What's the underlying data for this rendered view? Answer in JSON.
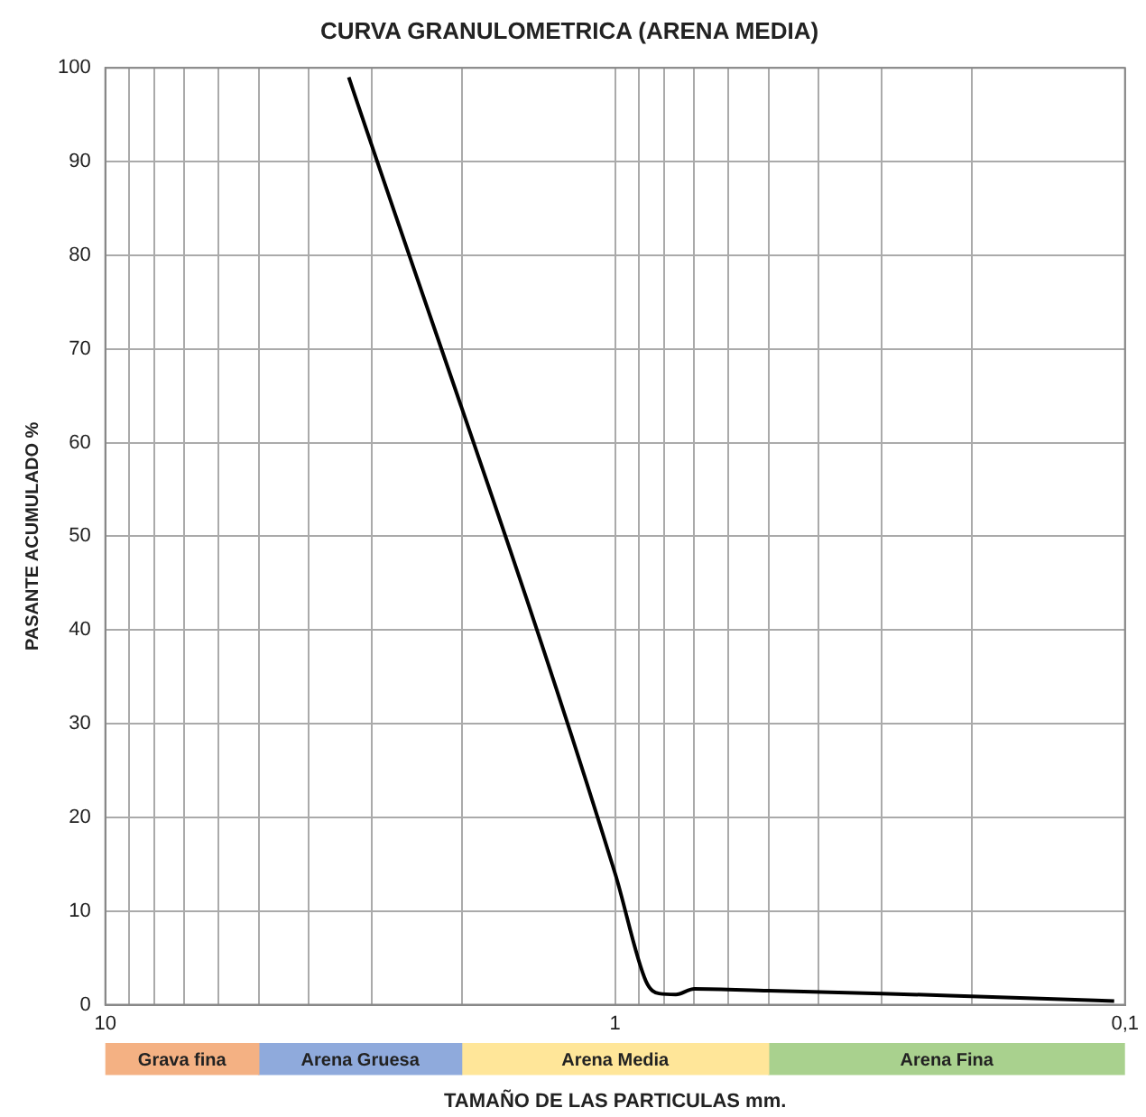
{
  "chart_data": [
    {
      "type": "line",
      "title": "CURVA GRANULOMETRICA (ARENA MEDIA)",
      "ylabel": "PASANTE ACUMULADO %",
      "x": [
        3.33,
        1,
        0.87,
        0.82,
        0.76,
        0.7,
        0.5,
        0.3,
        0.2,
        0.105
      ],
      "series": [
        {
          "color": "#000000",
          "values": [
            99,
            14,
            2.5,
            1.2,
            1.1,
            1.7,
            1.5,
            1.2,
            0.9,
            0.4
          ]
        }
      ],
      "log": "x",
      "xlim": [
        10,
        0.1
      ],
      "xticks": [
        10,
        {
          "value": 9,
          "label": null
        },
        {
          "value": 8,
          "label": null
        },
        {
          "value": 7,
          "label": null
        },
        {
          "value": 6,
          "label": null
        },
        {
          "value": 5,
          "label": null
        },
        {
          "value": 4,
          "label": null
        },
        {
          "value": 3,
          "label": null
        },
        {
          "value": 2,
          "label": null
        },
        1,
        {
          "value": 0.9,
          "label": null
        },
        {
          "value": 0.8,
          "label": null
        },
        {
          "value": 0.7,
          "label": null
        },
        {
          "value": 0.6,
          "label": null
        },
        {
          "value": 0.5,
          "label": null
        },
        {
          "value": 0.4,
          "label": null
        },
        {
          "value": 0.3,
          "label": null
        },
        {
          "value": 0.2,
          "label": null
        },
        {
          "value": 0.1,
          "label": "0,1"
        }
      ],
      "ylim": [
        0,
        100
      ],
      "yticks": [
        0,
        10,
        20,
        30,
        40,
        50,
        60,
        70,
        80,
        90,
        100
      ],
      "grid": true,
      "legend": false,
      "marker": "none",
      "line_style": "solid"
    },
    {
      "type": "bar",
      "orientation": "horizontal",
      "xlabel": "TAMAÑO DE LAS PARTICULAS mm.",
      "categories": [
        null
      ],
      "series": [
        {
          "name": "Grava fina",
          "color": "#f4b183",
          "base": [
            10
          ],
          "values": [
            -5
          ]
        },
        {
          "name": "Arena Gruesa",
          "color": "#8faadc",
          "base": [
            5
          ],
          "values": [
            -3
          ]
        },
        {
          "name": "Arena Media",
          "color": "#ffe699",
          "base": [
            2
          ],
          "values": [
            -1.5
          ]
        },
        {
          "name": "Arena Fina",
          "color": "#a9d18e",
          "base": [
            0.5
          ],
          "values": [
            -0.4
          ]
        }
      ],
      "log": "x",
      "xlim": [
        10,
        0.1
      ],
      "tick_labels": false,
      "legend": false
    }
  ]
}
